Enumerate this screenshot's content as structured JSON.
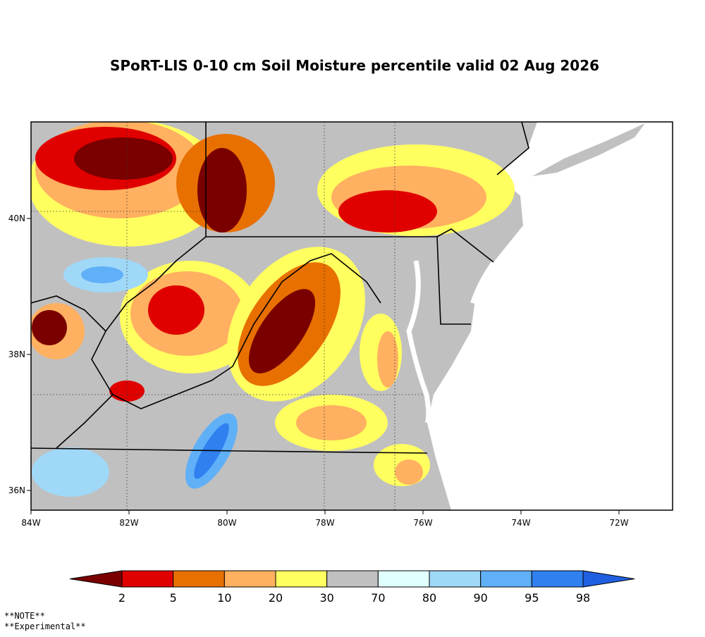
{
  "title": "SPoRT-LIS 0-10 cm Soil Moisture percentile valid 02 Aug 2026",
  "map": {
    "lon_ticks": [
      {
        "value": -84,
        "label": "84W"
      },
      {
        "value": -82,
        "label": "82W"
      },
      {
        "value": -80,
        "label": "80W"
      },
      {
        "value": -78,
        "label": "78W"
      },
      {
        "value": -76,
        "label": "76W"
      },
      {
        "value": -74,
        "label": "74W"
      },
      {
        "value": -72,
        "label": "72W"
      }
    ],
    "lat_ticks": [
      {
        "value": 40,
        "label": "40N"
      },
      {
        "value": 38,
        "label": "38N"
      },
      {
        "value": 36,
        "label": "36N"
      }
    ]
  },
  "colorbar": {
    "ticks": [
      2,
      5,
      10,
      20,
      30,
      70,
      80,
      90,
      95,
      98
    ],
    "colors": [
      "#7a0000",
      "#e00000",
      "#e87000",
      "#ffb060",
      "#ffff60",
      "#c0c0c0",
      "#e0ffff",
      "#a0d8f8",
      "#60b0f8",
      "#3080f0",
      "#2060e0"
    ]
  },
  "notes": [
    "**NOTE**",
    "**Experimental**"
  ]
}
